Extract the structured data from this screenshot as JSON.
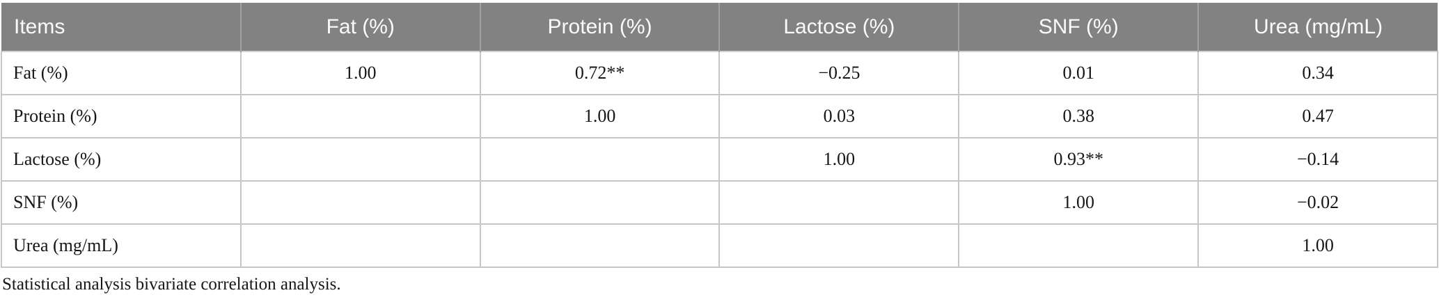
{
  "table": {
    "columns": [
      "Items",
      "Fat (%)",
      "Protein (%)",
      "Lactose (%)",
      "SNF (%)",
      "Urea (mg/mL)"
    ],
    "rows": [
      {
        "label": "Fat (%)",
        "values": [
          "1.00",
          "0.72**",
          "−0.25",
          "0.01",
          "0.34"
        ]
      },
      {
        "label": "Protein (%)",
        "values": [
          "",
          "1.00",
          "0.03",
          "0.38",
          "0.47"
        ]
      },
      {
        "label": "Lactose (%)",
        "values": [
          "",
          "",
          "1.00",
          "0.93**",
          "−0.14"
        ]
      },
      {
        "label": "SNF (%)",
        "values": [
          "",
          "",
          "",
          "1.00",
          "−0.02"
        ]
      },
      {
        "label": "Urea (mg/mL)",
        "values": [
          "",
          "",
          "",
          "",
          "1.00"
        ]
      }
    ]
  },
  "footnote": "Statistical analysis bivariate correlation analysis.",
  "colors": {
    "header_bg": "#828282",
    "header_text": "#fbfbfb",
    "border": "#c6c6c6",
    "body_text": "#161616"
  }
}
